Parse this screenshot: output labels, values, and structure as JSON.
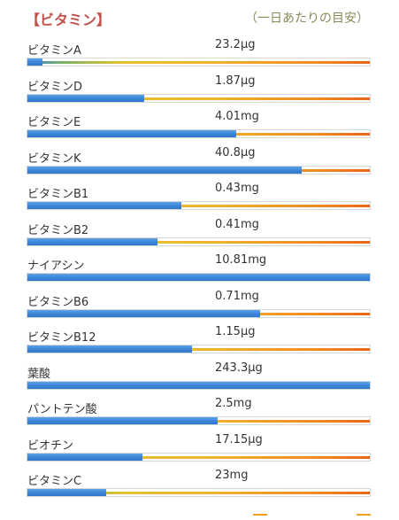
{
  "header": {
    "title": "【ビタミン】",
    "note": "（一日あたりの目安）"
  },
  "nutrients": [
    {
      "name": "ビタミンA",
      "amount": "23.2μg",
      "percent": 4.5
    },
    {
      "name": "ビタミンD",
      "amount": "1.87μg",
      "percent": 34
    },
    {
      "name": "ビタミンE",
      "amount": "4.01mg",
      "percent": 61
    },
    {
      "name": "ビタミンK",
      "amount": "40.8μg",
      "percent": 80
    },
    {
      "name": "ビタミンB1",
      "amount": "0.43mg",
      "percent": 45
    },
    {
      "name": "ビタミンB2",
      "amount": "0.41mg",
      "percent": 38
    },
    {
      "name": "ナイアシン",
      "amount": "10.81mg",
      "percent": 100
    },
    {
      "name": "ビタミンB6",
      "amount": "0.71mg",
      "percent": 68
    },
    {
      "name": "ビタミンB12",
      "amount": "1.15μg",
      "percent": 48
    },
    {
      "name": "葉酸",
      "amount": "243.3μg",
      "percent": 100
    },
    {
      "name": "パントテン酸",
      "amount": "2.5mg",
      "percent": 55.5
    },
    {
      "name": "ビオチン",
      "amount": "17.15μg",
      "percent": 33.5
    },
    {
      "name": "ビタミンC",
      "amount": "23mg",
      "percent": 23
    }
  ],
  "colors": {
    "title": "#c0524d",
    "note": "#8a8a5a",
    "bar_fill": "#3a84d6",
    "gradient_yellow": "#e6c22e",
    "gradient_orange": "#e8651a"
  }
}
